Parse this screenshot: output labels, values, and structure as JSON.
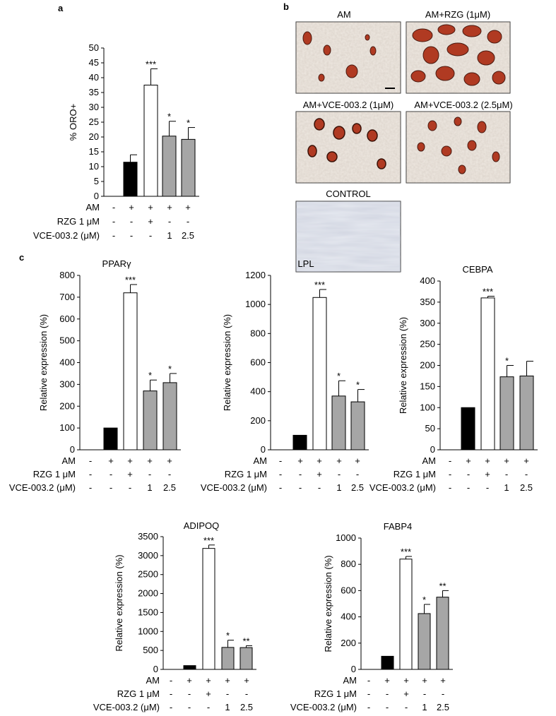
{
  "panels": {
    "a": "a",
    "b": "b",
    "c": "c"
  },
  "condition_rows": {
    "labels": [
      "AM",
      "RZG 1 μM",
      "VCE-003.2 (μM)"
    ],
    "values": [
      [
        "-",
        "+",
        "+",
        "+",
        "+"
      ],
      [
        "-",
        "-",
        "+",
        "-",
        "-"
      ],
      [
        "-",
        "-",
        "-",
        "1",
        "2.5"
      ]
    ]
  },
  "micrographs": {
    "titles": [
      "AM",
      "AM+RZG (1μM)",
      "AM+VCE-003.2 (1μM)",
      "AM+VCE-003.2 (2.5μM)",
      "CONTROL"
    ]
  },
  "colors": {
    "control": "#000000",
    "rzg": "#ffffff",
    "vce": "#a6a6a6",
    "stain": "#b03a22",
    "tissue": "#efe9e2"
  },
  "chart_data": [
    {
      "id": "oro",
      "type": "bar",
      "title": "",
      "xlabel": "",
      "ylabel": "% ORO+",
      "ylim": [
        0,
        50
      ],
      "yticks": [
        0,
        5,
        10,
        15,
        20,
        25,
        30,
        35,
        40,
        45,
        50
      ],
      "categories": [
        "Control",
        "AM",
        "AM+RZG 1 μM",
        "AM+VCE-003.2 1 μM",
        "AM+VCE-003.2 2.5 μM"
      ],
      "values": [
        null,
        11.5,
        37.5,
        20.3,
        19.2
      ],
      "errors": [
        null,
        2.5,
        5.5,
        5.0,
        4.0
      ],
      "significance": [
        "",
        "",
        "***",
        "*",
        "*"
      ],
      "bar_colors": [
        "",
        "#000000",
        "#ffffff",
        "#a6a6a6",
        "#a6a6a6"
      ]
    },
    {
      "id": "pparg",
      "type": "bar",
      "title": "PPARγ",
      "xlabel": "",
      "ylabel": "Relative expression (%)",
      "ylim": [
        0,
        800
      ],
      "yticks": [
        0,
        100,
        200,
        300,
        400,
        500,
        600,
        700,
        800
      ],
      "categories": [
        "Control",
        "AM",
        "AM+RZG 1 μM",
        "AM+VCE-003.2 1 μM",
        "AM+VCE-003.2 2.5 μM"
      ],
      "values": [
        null,
        100,
        720,
        270,
        308
      ],
      "errors": [
        null,
        0,
        38,
        50,
        42
      ],
      "significance": [
        "",
        "",
        "***",
        "*",
        "*"
      ],
      "bar_colors": [
        "",
        "#000000",
        "#ffffff",
        "#a6a6a6",
        "#a6a6a6"
      ]
    },
    {
      "id": "lpl",
      "type": "bar",
      "title": "LPL",
      "xlabel": "",
      "ylabel": "Relative expression (%)",
      "ylim": [
        0,
        1200
      ],
      "yticks": [
        0,
        200,
        400,
        600,
        800,
        1000,
        1200
      ],
      "categories": [
        "Control",
        "AM",
        "AM+RZG 1 μM",
        "AM+VCE-003.2 1 μM",
        "AM+VCE-003.2 2.5 μM"
      ],
      "values": [
        null,
        100,
        1048,
        370,
        330
      ],
      "errors": [
        null,
        0,
        55,
        105,
        85
      ],
      "significance": [
        "",
        "",
        "***",
        "*",
        "*"
      ],
      "bar_colors": [
        "",
        "#000000",
        "#ffffff",
        "#a6a6a6",
        "#a6a6a6"
      ]
    },
    {
      "id": "cebpa",
      "type": "bar",
      "title": "CEBPA",
      "xlabel": "",
      "ylabel": "Relative expression (%)",
      "ylim": [
        0,
        400
      ],
      "yticks": [
        0,
        50,
        100,
        150,
        200,
        250,
        300,
        350,
        400
      ],
      "categories": [
        "Control",
        "AM",
        "AM+RZG 1 μM",
        "AM+VCE-003.2 1 μM",
        "AM+VCE-003.2 2.5 μM"
      ],
      "values": [
        null,
        100,
        360,
        173,
        175
      ],
      "errors": [
        null,
        0,
        4,
        27,
        35
      ],
      "significance": [
        "",
        "",
        "***",
        "*",
        ""
      ],
      "bar_colors": [
        "",
        "#000000",
        "#ffffff",
        "#a6a6a6",
        "#a6a6a6"
      ]
    },
    {
      "id": "adipoq",
      "type": "bar",
      "title": "ADIPOQ",
      "xlabel": "",
      "ylabel": "Relative expression (%)",
      "ylim": [
        0,
        3500
      ],
      "yticks": [
        0,
        500,
        1000,
        1500,
        2000,
        2500,
        3000,
        3500
      ],
      "categories": [
        "Control",
        "AM",
        "AM+RZG 1 μM",
        "AM+VCE-003.2 1 μM",
        "AM+VCE-003.2 2.5 μM"
      ],
      "values": [
        null,
        100,
        3190,
        580,
        575
      ],
      "errors": [
        null,
        0,
        90,
        190,
        50
      ],
      "significance": [
        "",
        "",
        "***",
        "*",
        "**"
      ],
      "bar_colors": [
        "",
        "#000000",
        "#ffffff",
        "#a6a6a6",
        "#a6a6a6"
      ]
    },
    {
      "id": "fabp4",
      "type": "bar",
      "title": "FABP4",
      "xlabel": "",
      "ylabel": "Relative expression (%)",
      "ylim": [
        0,
        1000
      ],
      "yticks": [
        0,
        200,
        400,
        600,
        800,
        1000
      ],
      "categories": [
        "Control",
        "AM",
        "AM+RZG 1 μM",
        "AM+VCE-003.2 1 μM",
        "AM+VCE-003.2 2.5 μM"
      ],
      "values": [
        null,
        100,
        840,
        425,
        550
      ],
      "errors": [
        null,
        0,
        20,
        70,
        50
      ],
      "significance": [
        "",
        "",
        "***",
        "*",
        "**"
      ],
      "bar_colors": [
        "",
        "#000000",
        "#ffffff",
        "#a6a6a6",
        "#a6a6a6"
      ]
    }
  ]
}
